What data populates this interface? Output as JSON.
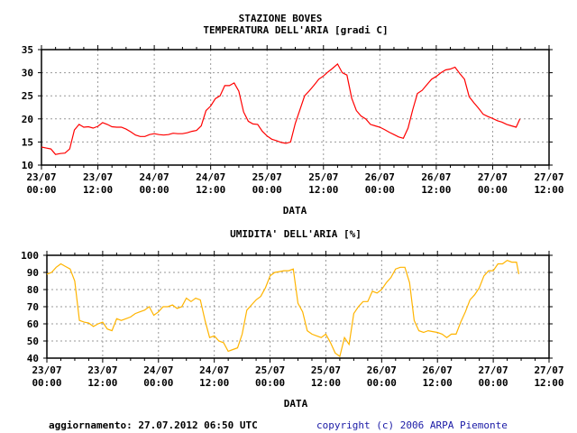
{
  "header": {
    "station": "STAZIONE BOVES"
  },
  "footer": {
    "update": "aggiornamento: 27.07.2012 06:50 UTC",
    "copyright": "copyright (c) 2006 ARPA Piemonte",
    "copyright_color": "#1a1aa6"
  },
  "chart_data": [
    {
      "type": "line",
      "title": "TEMPERATURA DELL'ARIA [gradi C]",
      "xlabel": "DATA",
      "ylabel": "",
      "color": "#ff0000",
      "ylim": [
        10,
        35
      ],
      "yticks": [
        10,
        15,
        20,
        25,
        30,
        35
      ],
      "xlim_hours": [
        0,
        108
      ],
      "xticks": [
        [
          "23/07",
          "00:00"
        ],
        [
          "23/07",
          "12:00"
        ],
        [
          "24/07",
          "00:00"
        ],
        [
          "24/07",
          "12:00"
        ],
        [
          "25/07",
          "00:00"
        ],
        [
          "25/07",
          "12:00"
        ],
        [
          "26/07",
          "00:00"
        ],
        [
          "26/07",
          "12:00"
        ],
        [
          "27/07",
          "00:00"
        ],
        [
          "27/07",
          "12:00"
        ]
      ],
      "grid": true,
      "x_hours_from_23_07_00_00": [
        0,
        1,
        2,
        3,
        4,
        5,
        6,
        7,
        8,
        9,
        10,
        11,
        12,
        13,
        14,
        15,
        16,
        17,
        18,
        19,
        20,
        21,
        22,
        23,
        24,
        25,
        26,
        27,
        28,
        29,
        30,
        31,
        32,
        33,
        34,
        35,
        36,
        37,
        38,
        39,
        40,
        41,
        42,
        43,
        44,
        45,
        46,
        47,
        48,
        49,
        50,
        51,
        52,
        53,
        54,
        55,
        56,
        57,
        58,
        59,
        60,
        61,
        62,
        63,
        64,
        65,
        66,
        67,
        68,
        69,
        70,
        71,
        72,
        73,
        74,
        75,
        76,
        77,
        78,
        79,
        80,
        81,
        82,
        83,
        84,
        85,
        86,
        87,
        88,
        89,
        90,
        91,
        92,
        93,
        94,
        95,
        96,
        97,
        98,
        99,
        100,
        101,
        101.8
      ],
      "values": [
        13.9,
        13.7,
        13.5,
        12.3,
        12.5,
        12.6,
        13.5,
        17.6,
        18.8,
        18.2,
        18.3,
        18.0,
        18.4,
        19.2,
        18.8,
        18.3,
        18.2,
        18.2,
        17.8,
        17.2,
        16.5,
        16.2,
        16.2,
        16.6,
        16.8,
        16.6,
        16.5,
        16.6,
        16.9,
        16.8,
        16.8,
        17.0,
        17.3,
        17.5,
        18.5,
        21.8,
        22.8,
        24.4,
        25.0,
        27.2,
        27.2,
        27.8,
        26.0,
        21.5,
        19.5,
        18.9,
        18.8,
        17.3,
        16.3,
        15.6,
        15.3,
        14.9,
        14.7,
        15.0,
        19.0,
        22.0,
        25.0,
        26.1,
        27.3,
        28.6,
        29.3,
        30.2,
        31.0,
        31.9,
        30.0,
        29.5,
        24.5,
        21.8,
        20.6,
        20.0,
        18.8,
        18.5,
        18.2,
        17.7,
        17.1,
        16.6,
        16.1,
        15.8,
        18.0,
        22.0,
        25.5,
        26.2,
        27.4,
        28.6,
        29.2,
        30.0,
        30.6,
        30.8,
        31.2,
        29.8,
        28.6,
        24.8,
        23.5,
        22.3,
        21.0,
        20.5,
        20.1,
        19.6,
        19.3,
        18.8,
        18.5,
        18.2,
        20.0
      ]
    },
    {
      "type": "line",
      "title": "UMIDITA' DELL'ARIA [%]",
      "xlabel": "DATA",
      "ylabel": "",
      "color": "#ffb400",
      "ylim": [
        40,
        100
      ],
      "yticks": [
        40,
        50,
        60,
        70,
        80,
        90,
        100
      ],
      "xlim_hours": [
        0,
        108
      ],
      "xticks": [
        [
          "23/07",
          "00:00"
        ],
        [
          "23/07",
          "12:00"
        ],
        [
          "24/07",
          "00:00"
        ],
        [
          "24/07",
          "12:00"
        ],
        [
          "25/07",
          "00:00"
        ],
        [
          "25/07",
          "12:00"
        ],
        [
          "26/07",
          "00:00"
        ],
        [
          "26/07",
          "12:00"
        ],
        [
          "27/07",
          "00:00"
        ],
        [
          "27/07",
          "12:00"
        ]
      ],
      "grid": true,
      "x_hours_from_23_07_00_00": [
        0,
        1,
        2,
        3,
        4,
        5,
        6,
        7,
        8,
        9,
        10,
        11,
        12,
        13,
        14,
        15,
        16,
        17,
        18,
        19,
        20,
        21,
        22,
        23,
        24,
        25,
        26,
        27,
        28,
        29,
        30,
        31,
        32,
        33,
        34,
        35,
        36,
        37,
        38,
        39,
        40,
        41,
        42,
        43,
        44,
        45,
        46,
        47,
        48,
        49,
        50,
        51,
        52,
        53,
        54,
        55,
        56,
        57,
        58,
        59,
        60,
        61,
        62,
        63,
        64,
        65,
        66,
        67,
        68,
        69,
        70,
        71,
        72,
        73,
        74,
        75,
        76,
        77,
        78,
        79,
        80,
        81,
        82,
        83,
        84,
        85,
        86,
        87,
        88,
        89,
        90,
        91,
        92,
        93,
        94,
        95,
        96,
        97,
        98,
        99,
        100,
        101,
        101.5
      ],
      "values": [
        89,
        90,
        93,
        95,
        93.5,
        92,
        85,
        62,
        61,
        60.5,
        58.5,
        60,
        61,
        57,
        56,
        63,
        62,
        63,
        64,
        66,
        67,
        68,
        70,
        65,
        67,
        70,
        70,
        71,
        69,
        70,
        75,
        73,
        75,
        74,
        62,
        52,
        53,
        50,
        49,
        44,
        45,
        46,
        54,
        68,
        71,
        74,
        76,
        81,
        88,
        90,
        90.5,
        91,
        91,
        92,
        72,
        67,
        56,
        54,
        53,
        52,
        54,
        49,
        43,
        41,
        52,
        48,
        66,
        70,
        73,
        73,
        79,
        78,
        80,
        84,
        87,
        92,
        93,
        93,
        84,
        62,
        56,
        55,
        56,
        55.5,
        55,
        54,
        52,
        54,
        54,
        61,
        67,
        74,
        77,
        81,
        88,
        91,
        91,
        95,
        95,
        97,
        96,
        96,
        89
      ]
    }
  ]
}
